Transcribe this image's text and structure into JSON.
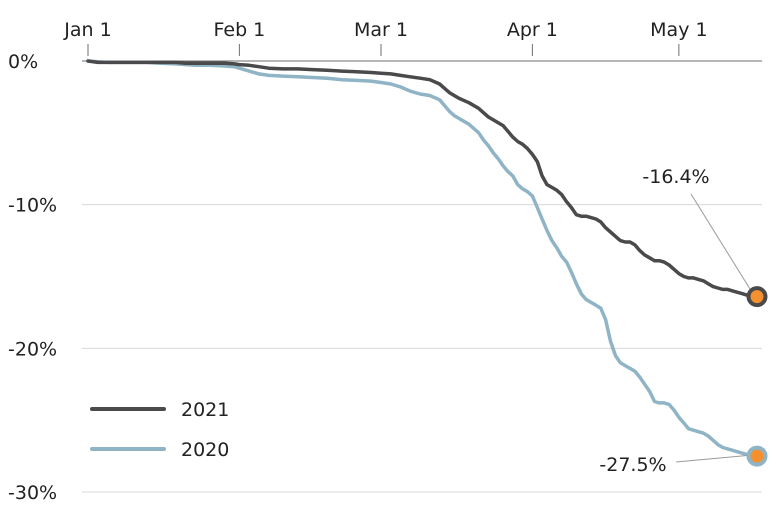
{
  "chart_data": {
    "type": "line",
    "title": "",
    "xlabel": "",
    "ylabel": "",
    "x_ticks": [
      "Jan 1",
      "Feb 1",
      "Mar 1",
      "Apr 1",
      "May 1"
    ],
    "x_tick_days": [
      0,
      31,
      60,
      91,
      121
    ],
    "y_ticks": [
      "0%",
      "-10%",
      "-20%",
      "-30%"
    ],
    "y_tick_values": [
      0,
      -10,
      -20,
      -30
    ],
    "xlim": [
      0,
      137
    ],
    "ylim": [
      -30,
      0
    ],
    "grid": "horizontal",
    "legend_position": "bottom-left",
    "series": [
      {
        "name": "2021",
        "color": "#4a4a4c",
        "x": [
          0,
          2,
          4,
          6,
          8,
          10,
          12,
          15,
          18,
          20,
          22,
          25,
          28,
          30,
          31,
          33,
          35,
          37,
          40,
          43,
          46,
          49,
          52,
          55,
          58,
          60,
          62,
          64,
          66,
          68,
          70,
          72,
          73,
          74,
          75,
          76,
          78,
          80,
          81,
          82,
          83,
          84,
          85,
          86,
          87,
          88,
          89,
          90,
          91,
          92,
          93,
          94,
          95,
          96,
          97,
          98,
          99,
          100,
          101,
          102,
          103,
          104,
          105,
          106,
          107,
          108,
          109,
          110,
          111,
          112,
          113,
          114,
          115,
          116,
          117,
          118,
          119,
          120,
          121,
          122,
          123,
          124,
          125,
          126,
          127,
          128,
          129,
          130,
          131,
          132,
          133,
          134,
          135,
          136,
          137
        ],
        "values": [
          0.0,
          -0.1,
          -0.1,
          -0.1,
          -0.1,
          -0.1,
          -0.1,
          -0.1,
          -0.1,
          -0.15,
          -0.15,
          -0.15,
          -0.15,
          -0.2,
          -0.25,
          -0.3,
          -0.4,
          -0.5,
          -0.55,
          -0.55,
          -0.6,
          -0.65,
          -0.7,
          -0.75,
          -0.8,
          -0.85,
          -0.9,
          -1.0,
          -1.1,
          -1.2,
          -1.3,
          -1.6,
          -1.9,
          -2.2,
          -2.4,
          -2.6,
          -2.9,
          -3.3,
          -3.6,
          -3.9,
          -4.1,
          -4.3,
          -4.5,
          -4.9,
          -5.3,
          -5.6,
          -5.8,
          -6.1,
          -6.5,
          -7.0,
          -8.0,
          -8.6,
          -8.8,
          -9.0,
          -9.3,
          -9.8,
          -10.2,
          -10.7,
          -10.8,
          -10.8,
          -10.9,
          -11.0,
          -11.2,
          -11.6,
          -11.9,
          -12.2,
          -12.5,
          -12.6,
          -12.6,
          -12.8,
          -13.2,
          -13.5,
          -13.7,
          -13.9,
          -13.9,
          -14.0,
          -14.2,
          -14.5,
          -14.8,
          -15.0,
          -15.1,
          -15.1,
          -15.2,
          -15.3,
          -15.5,
          -15.7,
          -15.8,
          -15.9,
          -15.9,
          -16.0,
          -16.1,
          -16.2,
          -16.3,
          -16.35,
          -16.4
        ]
      },
      {
        "name": "2020",
        "color": "#8fb4c5",
        "x": [
          0,
          2,
          4,
          6,
          8,
          10,
          12,
          15,
          18,
          20,
          22,
          25,
          28,
          30,
          31,
          33,
          35,
          37,
          40,
          43,
          46,
          49,
          52,
          55,
          58,
          60,
          62,
          64,
          66,
          68,
          70,
          72,
          73,
          74,
          75,
          76,
          78,
          80,
          81,
          82,
          83,
          84,
          85,
          86,
          87,
          88,
          89,
          90,
          91,
          92,
          93,
          94,
          95,
          96,
          97,
          98,
          99,
          100,
          101,
          102,
          103,
          104,
          105,
          106,
          107,
          108,
          109,
          110,
          111,
          112,
          113,
          114,
          115,
          116,
          117,
          118,
          119,
          120,
          121,
          122,
          123,
          124,
          125,
          126,
          127,
          128,
          129,
          130,
          131,
          132,
          133,
          134,
          135,
          136,
          137
        ],
        "values": [
          0.0,
          -0.05,
          -0.1,
          -0.1,
          -0.1,
          -0.1,
          -0.1,
          -0.15,
          -0.2,
          -0.25,
          -0.3,
          -0.3,
          -0.35,
          -0.4,
          -0.5,
          -0.7,
          -0.9,
          -1.0,
          -1.05,
          -1.1,
          -1.15,
          -1.2,
          -1.3,
          -1.35,
          -1.4,
          -1.5,
          -1.6,
          -1.8,
          -2.1,
          -2.3,
          -2.4,
          -2.7,
          -3.1,
          -3.5,
          -3.8,
          -4.0,
          -4.4,
          -5.0,
          -5.5,
          -5.9,
          -6.4,
          -6.8,
          -7.3,
          -7.7,
          -8.0,
          -8.6,
          -8.9,
          -9.1,
          -9.4,
          -10.2,
          -11.0,
          -11.8,
          -12.5,
          -13.0,
          -13.6,
          -14.0,
          -14.7,
          -15.5,
          -16.2,
          -16.6,
          -16.8,
          -17.0,
          -17.2,
          -18.0,
          -19.5,
          -20.5,
          -21.0,
          -21.2,
          -21.4,
          -21.6,
          -22.0,
          -22.5,
          -23.0,
          -23.7,
          -23.8,
          -23.8,
          -23.9,
          -24.3,
          -24.8,
          -25.2,
          -25.6,
          -25.7,
          -25.8,
          -25.9,
          -26.1,
          -26.4,
          -26.7,
          -26.9,
          -27.0,
          -27.1,
          -27.2,
          -27.3,
          -27.4,
          -27.45,
          -27.5
        ]
      }
    ],
    "annotations": [
      {
        "series": "2021",
        "label": "-16.4%",
        "marker_color": "#f4902d"
      },
      {
        "series": "2020",
        "label": "-27.5%",
        "marker_color": "#f4902d"
      }
    ]
  },
  "colors": {
    "gridline": "#d8d8d8",
    "axis": "#6e6e6e",
    "text": "#222222",
    "callout_line": "#9a9a9a"
  }
}
